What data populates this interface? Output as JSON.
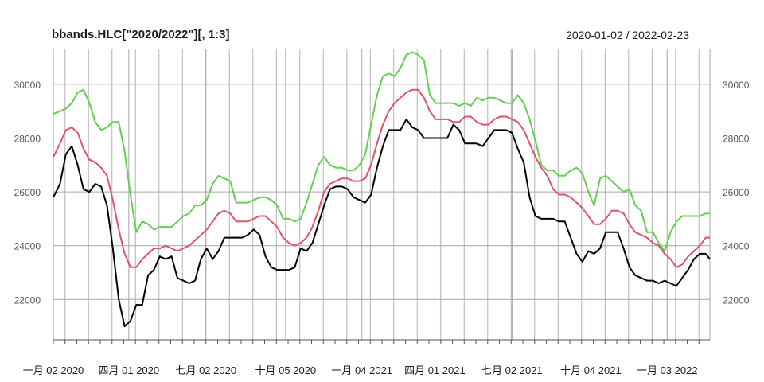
{
  "chart_data": {
    "type": "line",
    "title": "bbands.HLC[\"2020/2022\"][, 1:3]",
    "date_range": "2020-01-02 / 2022-02-23",
    "ylim": [
      20500,
      31300
    ],
    "grid": true,
    "y_ticks": [
      22000,
      24000,
      26000,
      28000,
      30000
    ],
    "y_tick_labels": [
      "22000",
      "24000",
      "26000",
      "28000",
      "30000"
    ],
    "x_ticks": [
      "2020-01-02",
      "2020-04-01",
      "2020-07-02",
      "2020-10-05",
      "2021-01-04",
      "2021-04-01",
      "2021-07-02",
      "2021-10-04",
      "2022-01-03"
    ],
    "x_tick_labels": [
      "一月 02 2020",
      "四月 01 2020",
      "七月 02 2020",
      "十月 05 2020",
      "一月 04 2021",
      "四月 01 2021",
      "七月 02 2021",
      "十月 04 2021",
      "一月 03 2022"
    ],
    "x_start": "2020-01-02",
    "x_end": "2022-02-23",
    "series": [
      {
        "color": "#000000",
        "x": [
          "2020-01-02",
          "2020-01-10",
          "2020-01-17",
          "2020-01-24",
          "2020-01-31",
          "2020-02-07",
          "2020-02-14",
          "2020-02-21",
          "2020-02-28",
          "2020-03-06",
          "2020-03-13",
          "2020-03-20",
          "2020-03-27",
          "2020-04-03",
          "2020-04-10",
          "2020-04-17",
          "2020-04-24",
          "2020-05-01",
          "2020-05-08",
          "2020-05-15",
          "2020-05-22",
          "2020-05-29",
          "2020-06-05",
          "2020-06-12",
          "2020-06-19",
          "2020-06-26",
          "2020-07-03",
          "2020-07-10",
          "2020-07-17",
          "2020-07-24",
          "2020-07-31",
          "2020-08-07",
          "2020-08-14",
          "2020-08-21",
          "2020-08-28",
          "2020-09-04",
          "2020-09-11",
          "2020-09-18",
          "2020-09-25",
          "2020-10-02",
          "2020-10-09",
          "2020-10-16",
          "2020-10-23",
          "2020-10-30",
          "2020-11-06",
          "2020-11-13",
          "2020-11-20",
          "2020-11-27",
          "2020-12-04",
          "2020-12-11",
          "2020-12-18",
          "2020-12-25",
          "2021-01-01",
          "2021-01-08",
          "2021-01-15",
          "2021-01-22",
          "2021-01-29",
          "2021-02-05",
          "2021-02-12",
          "2021-02-19",
          "2021-02-26",
          "2021-03-05",
          "2021-03-12",
          "2021-03-19",
          "2021-03-26",
          "2021-04-02",
          "2021-04-09",
          "2021-04-16",
          "2021-04-23",
          "2021-04-30",
          "2021-05-07",
          "2021-05-14",
          "2021-05-21",
          "2021-05-28",
          "2021-06-04",
          "2021-06-11",
          "2021-06-18",
          "2021-06-25",
          "2021-07-02",
          "2021-07-09",
          "2021-07-16",
          "2021-07-23",
          "2021-07-30",
          "2021-08-06",
          "2021-08-13",
          "2021-08-20",
          "2021-08-27",
          "2021-09-03",
          "2021-09-10",
          "2021-09-17",
          "2021-09-24",
          "2021-10-01",
          "2021-10-08",
          "2021-10-15",
          "2021-10-22",
          "2021-10-29",
          "2021-11-05",
          "2021-11-12",
          "2021-11-19",
          "2021-11-26",
          "2021-12-03",
          "2021-12-10",
          "2021-12-17",
          "2021-12-24",
          "2021-12-31",
          "2022-01-07",
          "2022-01-14",
          "2022-01-21",
          "2022-01-28",
          "2022-02-04",
          "2022-02-11",
          "2022-02-18",
          "2022-02-23"
        ],
        "values": [
          25800,
          26300,
          27400,
          27700,
          27000,
          26100,
          26000,
          26300,
          26200,
          25500,
          23900,
          22000,
          21000,
          21200,
          21800,
          21800,
          22900,
          23100,
          23600,
          23500,
          23600,
          22800,
          22700,
          22600,
          22700,
          23500,
          23900,
          23500,
          23800,
          24300,
          24300,
          24300,
          24300,
          24400,
          24600,
          24400,
          23600,
          23200,
          23100,
          23100,
          23100,
          23200,
          23900,
          23800,
          24100,
          24800,
          25500,
          26100,
          26200,
          26200,
          26100,
          25800,
          25700,
          25600,
          25900,
          26900,
          27700,
          28300,
          28300,
          28300,
          28700,
          28400,
          28300,
          28000,
          28000,
          28000,
          28000,
          28000,
          28500,
          28300,
          27800,
          27800,
          27800,
          27700,
          28000,
          28300,
          28300,
          28300,
          28200,
          27600,
          27100,
          25800,
          25100,
          25000,
          25000,
          25000,
          24900,
          24900,
          24300,
          23700,
          23400,
          23800,
          23700,
          23900,
          24500,
          24500,
          24500,
          23900,
          23200,
          22900,
          22800,
          22700,
          22700,
          22600,
          22700,
          22600,
          22500,
          22800,
          23100,
          23500,
          23700,
          23700,
          23500
        ]
      },
      {
        "color": "#DF536B",
        "x": [
          "2020-01-02",
          "2020-01-10",
          "2020-01-17",
          "2020-01-24",
          "2020-01-31",
          "2020-02-07",
          "2020-02-14",
          "2020-02-21",
          "2020-02-28",
          "2020-03-06",
          "2020-03-13",
          "2020-03-20",
          "2020-03-27",
          "2020-04-03",
          "2020-04-10",
          "2020-04-17",
          "2020-04-24",
          "2020-05-01",
          "2020-05-08",
          "2020-05-15",
          "2020-05-22",
          "2020-05-29",
          "2020-06-05",
          "2020-06-12",
          "2020-06-19",
          "2020-06-26",
          "2020-07-03",
          "2020-07-10",
          "2020-07-17",
          "2020-07-24",
          "2020-07-31",
          "2020-08-07",
          "2020-08-14",
          "2020-08-21",
          "2020-08-28",
          "2020-09-04",
          "2020-09-11",
          "2020-09-18",
          "2020-09-25",
          "2020-10-02",
          "2020-10-09",
          "2020-10-16",
          "2020-10-23",
          "2020-10-30",
          "2020-11-06",
          "2020-11-13",
          "2020-11-20",
          "2020-11-27",
          "2020-12-04",
          "2020-12-11",
          "2020-12-18",
          "2020-12-25",
          "2021-01-01",
          "2021-01-08",
          "2021-01-15",
          "2021-01-22",
          "2021-01-29",
          "2021-02-05",
          "2021-02-12",
          "2021-02-19",
          "2021-02-26",
          "2021-03-05",
          "2021-03-12",
          "2021-03-19",
          "2021-03-26",
          "2021-04-02",
          "2021-04-09",
          "2021-04-16",
          "2021-04-23",
          "2021-04-30",
          "2021-05-07",
          "2021-05-14",
          "2021-05-21",
          "2021-05-28",
          "2021-06-04",
          "2021-06-11",
          "2021-06-18",
          "2021-06-25",
          "2021-07-02",
          "2021-07-09",
          "2021-07-16",
          "2021-07-23",
          "2021-07-30",
          "2021-08-06",
          "2021-08-13",
          "2021-08-20",
          "2021-08-27",
          "2021-09-03",
          "2021-09-10",
          "2021-09-17",
          "2021-09-24",
          "2021-10-01",
          "2021-10-08",
          "2021-10-15",
          "2021-10-22",
          "2021-10-29",
          "2021-11-05",
          "2021-11-12",
          "2021-11-19",
          "2021-11-26",
          "2021-12-03",
          "2021-12-10",
          "2021-12-17",
          "2021-12-24",
          "2021-12-31",
          "2022-01-07",
          "2022-01-14",
          "2022-01-21",
          "2022-01-28",
          "2022-02-04",
          "2022-02-11",
          "2022-02-18",
          "2022-02-23"
        ],
        "values": [
          27300,
          27800,
          28300,
          28400,
          28200,
          27600,
          27200,
          27100,
          26900,
          26600,
          25700,
          24600,
          23700,
          23200,
          23200,
          23500,
          23700,
          23900,
          23900,
          24000,
          23900,
          23800,
          23900,
          24000,
          24200,
          24400,
          24600,
          24900,
          25200,
          25300,
          25200,
          24900,
          24900,
          24900,
          25000,
          25100,
          25100,
          24900,
          24700,
          24300,
          24100,
          24000,
          24100,
          24300,
          24700,
          25300,
          26000,
          26300,
          26400,
          26500,
          26500,
          26400,
          26400,
          26500,
          27000,
          27800,
          28500,
          29000,
          29300,
          29500,
          29700,
          29800,
          29800,
          29500,
          29000,
          28700,
          28700,
          28700,
          28600,
          28600,
          28800,
          28800,
          28600,
          28500,
          28500,
          28700,
          28800,
          28800,
          28700,
          28600,
          28300,
          27800,
          27300,
          26900,
          26600,
          26100,
          25900,
          25900,
          25800,
          25600,
          25400,
          25100,
          24800,
          24800,
          25000,
          25300,
          25300,
          25200,
          24800,
          24500,
          24400,
          24300,
          24100,
          24000,
          23700,
          23500,
          23200,
          23300,
          23600,
          23800,
          24000,
          24300,
          24300
        ]
      },
      {
        "color": "#61D04F",
        "x": [
          "2020-01-02",
          "2020-01-10",
          "2020-01-17",
          "2020-01-24",
          "2020-01-31",
          "2020-02-07",
          "2020-02-14",
          "2020-02-21",
          "2020-02-28",
          "2020-03-06",
          "2020-03-13",
          "2020-03-20",
          "2020-03-27",
          "2020-04-03",
          "2020-04-10",
          "2020-04-17",
          "2020-04-24",
          "2020-05-01",
          "2020-05-08",
          "2020-05-15",
          "2020-05-22",
          "2020-05-29",
          "2020-06-05",
          "2020-06-12",
          "2020-06-19",
          "2020-06-26",
          "2020-07-03",
          "2020-07-10",
          "2020-07-17",
          "2020-07-24",
          "2020-07-31",
          "2020-08-07",
          "2020-08-14",
          "2020-08-21",
          "2020-08-28",
          "2020-09-04",
          "2020-09-11",
          "2020-09-18",
          "2020-09-25",
          "2020-10-02",
          "2020-10-09",
          "2020-10-16",
          "2020-10-23",
          "2020-10-30",
          "2020-11-06",
          "2020-11-13",
          "2020-11-20",
          "2020-11-27",
          "2020-12-04",
          "2020-12-11",
          "2020-12-18",
          "2020-12-25",
          "2021-01-01",
          "2021-01-08",
          "2021-01-15",
          "2021-01-22",
          "2021-01-29",
          "2021-02-05",
          "2021-02-12",
          "2021-02-19",
          "2021-02-26",
          "2021-03-05",
          "2021-03-12",
          "2021-03-19",
          "2021-03-26",
          "2021-04-02",
          "2021-04-09",
          "2021-04-16",
          "2021-04-23",
          "2021-04-30",
          "2021-05-07",
          "2021-05-14",
          "2021-05-21",
          "2021-05-28",
          "2021-06-04",
          "2021-06-11",
          "2021-06-18",
          "2021-06-25",
          "2021-07-02",
          "2021-07-09",
          "2021-07-16",
          "2021-07-23",
          "2021-07-30",
          "2021-08-06",
          "2021-08-13",
          "2021-08-20",
          "2021-08-27",
          "2021-09-03",
          "2021-09-10",
          "2021-09-17",
          "2021-09-24",
          "2021-10-01",
          "2021-10-08",
          "2021-10-15",
          "2021-10-22",
          "2021-10-29",
          "2021-11-05",
          "2021-11-12",
          "2021-11-19",
          "2021-11-26",
          "2021-12-03",
          "2021-12-10",
          "2021-12-17",
          "2021-12-24",
          "2021-12-31",
          "2022-01-07",
          "2022-01-14",
          "2022-01-21",
          "2022-01-28",
          "2022-02-04",
          "2022-02-11",
          "2022-02-18",
          "2022-02-23"
        ],
        "values": [
          28900,
          29000,
          29100,
          29300,
          29700,
          29800,
          29300,
          28600,
          28300,
          28400,
          28600,
          28600,
          27500,
          25900,
          24500,
          24900,
          24800,
          24600,
          24700,
          24700,
          24700,
          24900,
          25100,
          25200,
          25500,
          25500,
          25700,
          26300,
          26600,
          26500,
          26400,
          25600,
          25600,
          25600,
          25700,
          25800,
          25800,
          25700,
          25500,
          25000,
          25000,
          24900,
          25000,
          25600,
          26300,
          27000,
          27300,
          27000,
          26900,
          26900,
          26800,
          26800,
          27000,
          27400,
          28500,
          29600,
          30300,
          30400,
          30300,
          30600,
          31100,
          31200,
          31100,
          30900,
          29600,
          29300,
          29300,
          29300,
          29300,
          29200,
          29300,
          29200,
          29500,
          29400,
          29500,
          29500,
          29400,
          29300,
          29300,
          29600,
          29300,
          28700,
          27900,
          27000,
          26800,
          26800,
          26600,
          26600,
          26800,
          26900,
          26700,
          26000,
          25500,
          26500,
          26600,
          26400,
          26200,
          26000,
          26100,
          25500,
          25300,
          24500,
          24500,
          24100,
          23800,
          24500,
          24900,
          25100,
          25100,
          25100,
          25100,
          25200,
          25200
        ]
      }
    ]
  }
}
